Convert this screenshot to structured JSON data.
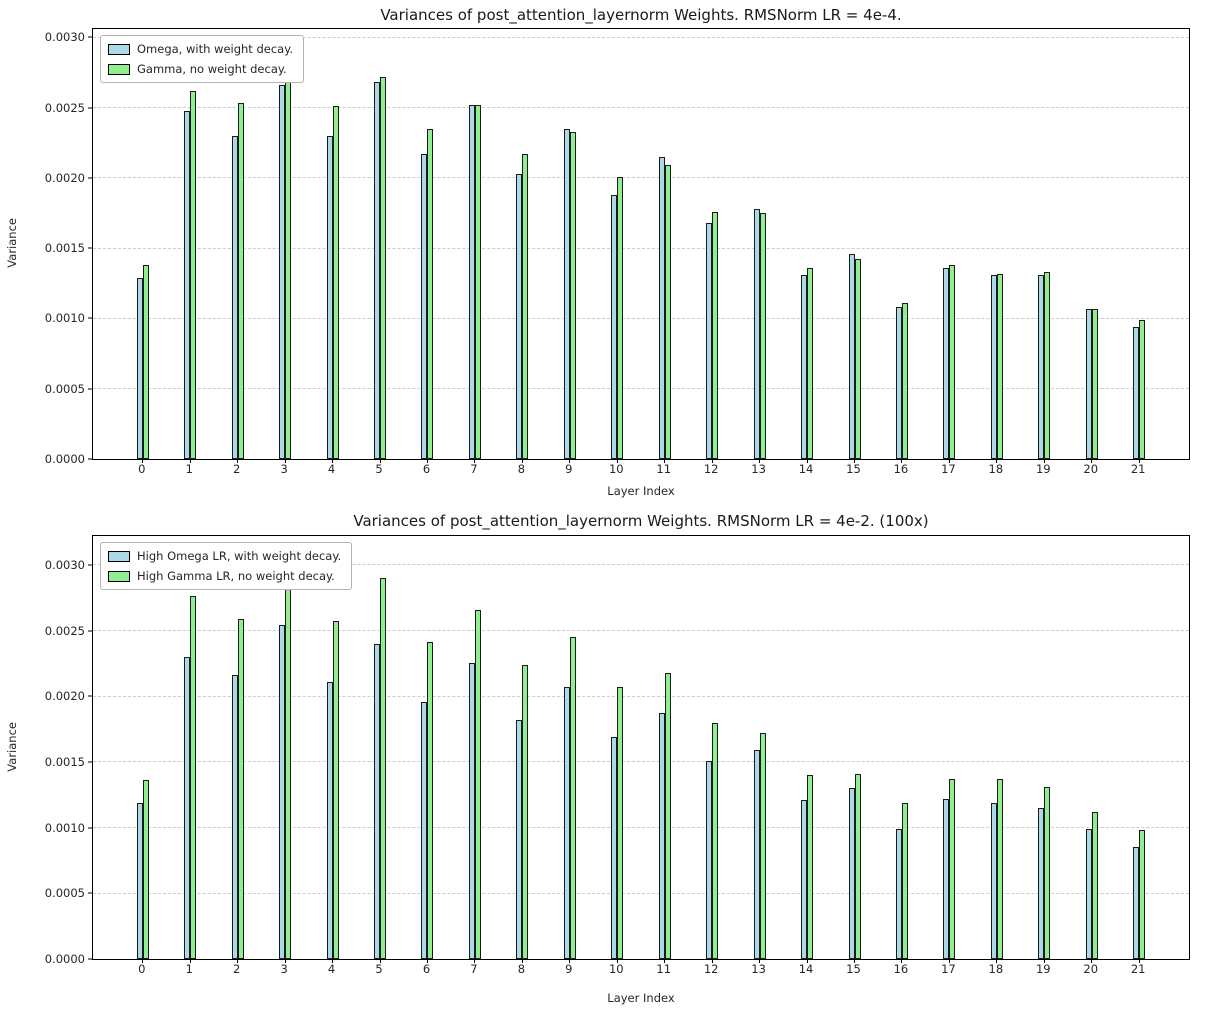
{
  "chart_data": [
    {
      "type": "bar",
      "title": "Variances of post_attention_layernorm Weights. RMSNorm LR = 4e-4.",
      "xlabel": "Layer Index",
      "ylabel": "Variance",
      "categories": [
        "0",
        "1",
        "2",
        "3",
        "4",
        "5",
        "6",
        "7",
        "8",
        "9",
        "10",
        "11",
        "12",
        "13",
        "14",
        "15",
        "16",
        "17",
        "18",
        "19",
        "20",
        "21"
      ],
      "yticks": [
        0.0,
        0.0005,
        0.001,
        0.0015,
        0.002,
        0.0025,
        0.003
      ],
      "ytick_labels": [
        "0.0000",
        "0.0005",
        "0.0010",
        "0.0015",
        "0.0020",
        "0.0025",
        "0.0030"
      ],
      "ylim": [
        0,
        0.00306
      ],
      "grid": "dashed-horizontal",
      "legend_position": "upper-left",
      "grid_color": "#cccccc",
      "edge_color": "#1c1c1c",
      "series": [
        {
          "name": "Omega, with weight decay.",
          "color": "#add8e6",
          "values": [
            0.00129,
            0.00248,
            0.0023,
            0.00266,
            0.0023,
            0.00268,
            0.00217,
            0.00252,
            0.00203,
            0.00235,
            0.00188,
            0.00215,
            0.00168,
            0.00178,
            0.00131,
            0.00146,
            0.00108,
            0.00136,
            0.00131,
            0.00131,
            0.00107,
            0.00094
          ]
        },
        {
          "name": "Gamma, no weight decay.",
          "color": "#90ee90",
          "values": [
            0.00138,
            0.00262,
            0.00253,
            0.0029,
            0.00251,
            0.00272,
            0.00235,
            0.00252,
            0.00217,
            0.00233,
            0.00201,
            0.00209,
            0.00176,
            0.00175,
            0.00136,
            0.00142,
            0.00111,
            0.00138,
            0.00132,
            0.00133,
            0.00107,
            0.00099
          ]
        }
      ]
    },
    {
      "type": "bar",
      "title": "Variances of post_attention_layernorm Weights. RMSNorm LR = 4e-2. (100x)",
      "xlabel": "Layer Index",
      "ylabel": "Variance",
      "categories": [
        "0",
        "1",
        "2",
        "3",
        "4",
        "5",
        "6",
        "7",
        "8",
        "9",
        "10",
        "11",
        "12",
        "13",
        "14",
        "15",
        "16",
        "17",
        "18",
        "19",
        "20",
        "21"
      ],
      "yticks": [
        0.0,
        0.0005,
        0.001,
        0.0015,
        0.002,
        0.0025,
        0.003
      ],
      "ytick_labels": [
        "0.0000",
        "0.0005",
        "0.0010",
        "0.0015",
        "0.0020",
        "0.0025",
        "0.0030"
      ],
      "ylim": [
        0,
        0.00322
      ],
      "grid": "dashed-horizontal",
      "legend_position": "upper-left",
      "grid_color": "#cccccc",
      "edge_color": "#1c1c1c",
      "series": [
        {
          "name": "High Omega LR, with weight decay.",
          "color": "#add8e6",
          "values": [
            0.00119,
            0.0023,
            0.00216,
            0.00254,
            0.00211,
            0.0024,
            0.00196,
            0.00225,
            0.00182,
            0.00207,
            0.00169,
            0.00187,
            0.00151,
            0.00159,
            0.00121,
            0.0013,
            0.00099,
            0.00122,
            0.00119,
            0.00115,
            0.00099,
            0.00085
          ]
        },
        {
          "name": "High Gamma LR, no weight decay.",
          "color": "#90ee90",
          "values": [
            0.00136,
            0.00276,
            0.00259,
            0.00305,
            0.00257,
            0.0029,
            0.00241,
            0.00266,
            0.00224,
            0.00245,
            0.00207,
            0.00218,
            0.0018,
            0.00172,
            0.0014,
            0.00141,
            0.00119,
            0.00137,
            0.00137,
            0.00131,
            0.00112,
            0.00098
          ]
        }
      ]
    }
  ]
}
